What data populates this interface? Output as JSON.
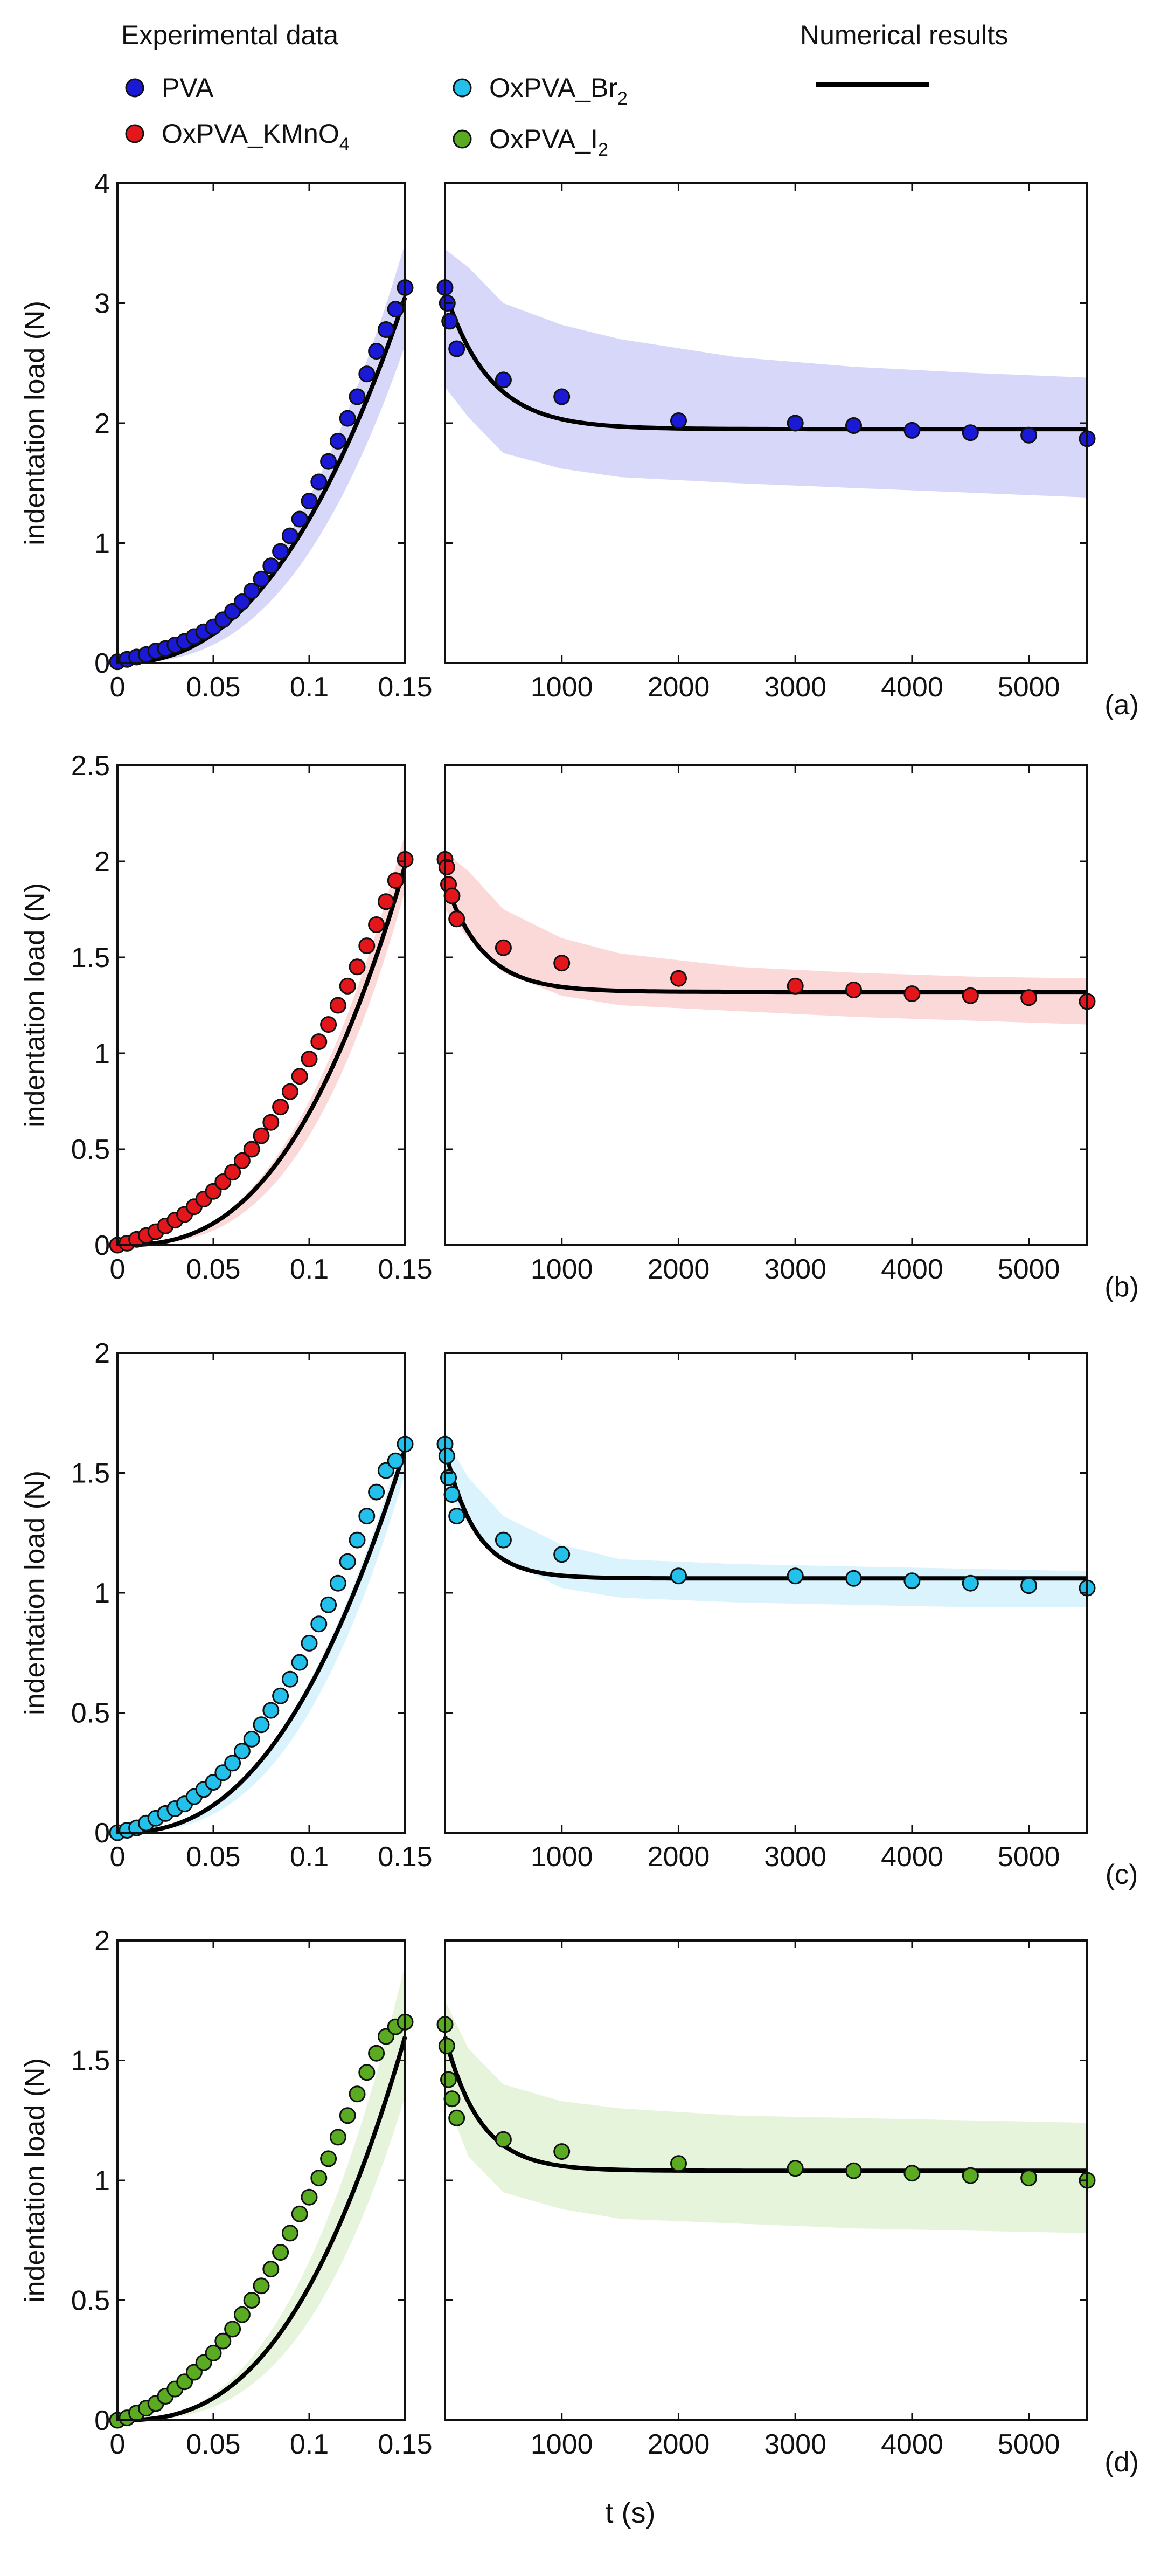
{
  "legend": {
    "experimental_title": "Experimental data",
    "numerical_title": "Numerical results",
    "entries": [
      {
        "name": "PVA",
        "color": "#1a1ad6"
      },
      {
        "name": "OxPVA_KMnO",
        "sub": "4",
        "color": "#e3171b"
      },
      {
        "name": "OxPVA_Br",
        "sub": "2",
        "color": "#22c0ea"
      },
      {
        "name": "OxPVA_I",
        "sub": "2",
        "color": "#5bab22"
      }
    ],
    "line_color": "#000000"
  },
  "shared_xlabel": "t (s)",
  "chart_data": [
    {
      "type": "scatter",
      "panel_label": "(a)",
      "series_name": "PVA",
      "ylabel": "indentation load (N)",
      "ylim": [
        0,
        4
      ],
      "yticks": [
        0,
        1,
        2,
        3,
        4
      ],
      "ytick_labels": [
        "0",
        "1",
        "2",
        "3",
        "4"
      ],
      "left_xlim": [
        0,
        0.15
      ],
      "left_xticks": [
        0,
        0.05,
        0.1,
        0.15
      ],
      "left_xtick_labels": [
        "0",
        "0.05",
        "0.1",
        "0.15"
      ],
      "right_xlim": [
        0,
        5500
      ],
      "right_xticks": [
        1000,
        2000,
        3000,
        4000,
        5000
      ],
      "right_xtick_labels": [
        "1000",
        "2000",
        "3000",
        "4000",
        "5000"
      ],
      "marker_color": "#1a1ad6",
      "band_color": "#c9c9f7",
      "loading_points": {
        "x": [
          0,
          0.005,
          0.01,
          0.015,
          0.02,
          0.025,
          0.03,
          0.035,
          0.04,
          0.045,
          0.05,
          0.055,
          0.06,
          0.065,
          0.07,
          0.075,
          0.08,
          0.085,
          0.09,
          0.095,
          0.1,
          0.105,
          0.11,
          0.115,
          0.12,
          0.125,
          0.13,
          0.135,
          0.14,
          0.145,
          0.15
        ],
        "y": [
          0.01,
          0.03,
          0.05,
          0.07,
          0.1,
          0.12,
          0.15,
          0.18,
          0.22,
          0.26,
          0.3,
          0.36,
          0.43,
          0.51,
          0.6,
          0.7,
          0.81,
          0.93,
          1.06,
          1.2,
          1.35,
          1.51,
          1.68,
          1.85,
          2.04,
          2.22,
          2.41,
          2.6,
          2.78,
          2.95,
          3.13
        ]
      },
      "loading_model": {
        "y_at_end": 3.05,
        "exponent": 2.3
      },
      "loading_band": {
        "upper_at_end": 3.5,
        "lower_at_end": 2.65
      },
      "relax_points": {
        "x": [
          0,
          20,
          40,
          100,
          500,
          1000,
          2000,
          3000,
          3500,
          4000,
          4500,
          5000,
          5500
        ],
        "y": [
          3.13,
          3.0,
          2.85,
          2.62,
          2.36,
          2.22,
          2.02,
          2.0,
          1.98,
          1.94,
          1.92,
          1.9,
          1.87
        ]
      },
      "relax_model": {
        "y0": 3.1,
        "y_inf": 1.95,
        "tau": 380
      },
      "relax_band": {
        "upper": [
          3.45,
          3.3,
          3.0,
          2.82,
          2.7,
          2.55,
          2.47,
          2.42,
          2.38
        ],
        "lower": [
          2.3,
          2.05,
          1.75,
          1.62,
          1.55,
          1.5,
          1.46,
          1.42,
          1.38
        ],
        "x": [
          0,
          200,
          500,
          1000,
          1500,
          2500,
          3500,
          4500,
          5500
        ]
      }
    },
    {
      "type": "scatter",
      "panel_label": "(b)",
      "series_name": "OxPVA_KMnO4",
      "ylabel": "indentation load (N)",
      "ylim": [
        0,
        2.5
      ],
      "yticks": [
        0,
        0.5,
        1,
        1.5,
        2,
        2.5
      ],
      "ytick_labels": [
        "0",
        "0.5",
        "1",
        "1.5",
        "2",
        "2.5"
      ],
      "left_xlim": [
        0,
        0.15
      ],
      "left_xticks": [
        0,
        0.05,
        0.1,
        0.15
      ],
      "left_xtick_labels": [
        "0",
        "0.05",
        "0.1",
        "0.15"
      ],
      "right_xlim": [
        0,
        5500
      ],
      "right_xticks": [
        1000,
        2000,
        3000,
        4000,
        5000
      ],
      "right_xtick_labels": [
        "1000",
        "2000",
        "3000",
        "4000",
        "5000"
      ],
      "marker_color": "#e3171b",
      "band_color": "#fbcccc",
      "loading_points": {
        "x": [
          0,
          0.005,
          0.01,
          0.015,
          0.02,
          0.025,
          0.03,
          0.035,
          0.04,
          0.045,
          0.05,
          0.055,
          0.06,
          0.065,
          0.07,
          0.075,
          0.08,
          0.085,
          0.09,
          0.095,
          0.1,
          0.105,
          0.11,
          0.115,
          0.12,
          0.125,
          0.13,
          0.135,
          0.14,
          0.145,
          0.15
        ],
        "y": [
          0,
          0.01,
          0.03,
          0.05,
          0.07,
          0.1,
          0.13,
          0.16,
          0.2,
          0.24,
          0.28,
          0.33,
          0.38,
          0.44,
          0.5,
          0.57,
          0.64,
          0.72,
          0.8,
          0.88,
          0.97,
          1.06,
          1.15,
          1.25,
          1.35,
          1.45,
          1.56,
          1.67,
          1.79,
          1.9,
          2.01
        ]
      },
      "loading_model": {
        "y_at_end": 1.98,
        "exponent": 2.6
      },
      "loading_band": {
        "upper_at_end": 2.15,
        "lower_at_end": 1.85
      },
      "relax_points": {
        "x": [
          0,
          15,
          30,
          60,
          100,
          500,
          1000,
          2000,
          3000,
          3500,
          4000,
          4500,
          5000,
          5500
        ],
        "y": [
          2.01,
          1.97,
          1.88,
          1.82,
          1.7,
          1.55,
          1.47,
          1.39,
          1.35,
          1.33,
          1.31,
          1.3,
          1.29,
          1.27
        ]
      },
      "relax_model": {
        "y0": 1.9,
        "y_inf": 1.32,
        "tau": 320
      },
      "relax_band": {
        "upper": [
          2.05,
          1.95,
          1.75,
          1.6,
          1.52,
          1.45,
          1.42,
          1.4,
          1.39
        ],
        "lower": [
          1.75,
          1.6,
          1.42,
          1.3,
          1.25,
          1.22,
          1.19,
          1.17,
          1.15
        ],
        "x": [
          0,
          200,
          500,
          1000,
          1500,
          2500,
          3500,
          4500,
          5500
        ]
      }
    },
    {
      "type": "scatter",
      "panel_label": "(c)",
      "series_name": "OxPVA_Br2",
      "ylabel": "indentation load (N)",
      "ylim": [
        0,
        2
      ],
      "yticks": [
        0,
        0.5,
        1,
        1.5,
        2
      ],
      "ytick_labels": [
        "0",
        "0.5",
        "1",
        "1.5",
        "2"
      ],
      "left_xlim": [
        0,
        0.15
      ],
      "left_xticks": [
        0,
        0.05,
        0.1,
        0.15
      ],
      "left_xtick_labels": [
        "0",
        "0.05",
        "0.1",
        "0.15"
      ],
      "right_xlim": [
        0,
        5500
      ],
      "right_xticks": [
        1000,
        2000,
        3000,
        4000,
        5000
      ],
      "right_xtick_labels": [
        "1000",
        "2000",
        "3000",
        "4000",
        "5000"
      ],
      "marker_color": "#22c0ea",
      "band_color": "#cdeffb",
      "loading_points": {
        "x": [
          0,
          0.005,
          0.01,
          0.015,
          0.02,
          0.025,
          0.03,
          0.035,
          0.04,
          0.045,
          0.05,
          0.055,
          0.06,
          0.065,
          0.07,
          0.075,
          0.08,
          0.085,
          0.09,
          0.095,
          0.1,
          0.105,
          0.11,
          0.115,
          0.12,
          0.125,
          0.13,
          0.135,
          0.14,
          0.145,
          0.15
        ],
        "y": [
          0,
          0.01,
          0.02,
          0.04,
          0.06,
          0.08,
          0.1,
          0.12,
          0.15,
          0.18,
          0.21,
          0.25,
          0.29,
          0.34,
          0.39,
          0.45,
          0.51,
          0.57,
          0.64,
          0.71,
          0.79,
          0.87,
          0.95,
          1.04,
          1.13,
          1.22,
          1.32,
          1.42,
          1.51,
          1.55,
          1.62
        ]
      },
      "loading_model": {
        "y_at_end": 1.6,
        "exponent": 2.4
      },
      "loading_band": {
        "upper_at_end": 1.66,
        "lower_at_end": 1.5
      },
      "relax_points": {
        "x": [
          0,
          15,
          30,
          60,
          100,
          500,
          1000,
          2000,
          3000,
          3500,
          4000,
          4500,
          5000,
          5500
        ],
        "y": [
          1.62,
          1.57,
          1.48,
          1.41,
          1.32,
          1.22,
          1.16,
          1.07,
          1.07,
          1.06,
          1.05,
          1.04,
          1.03,
          1.02
        ]
      },
      "relax_model": {
        "y0": 1.6,
        "y_inf": 1.06,
        "tau": 260
      },
      "relax_band": {
        "upper": [
          1.65,
          1.48,
          1.32,
          1.2,
          1.14,
          1.12,
          1.11,
          1.1,
          1.09
        ],
        "lower": [
          1.45,
          1.28,
          1.14,
          1.02,
          0.98,
          0.96,
          0.95,
          0.94,
          0.94
        ],
        "x": [
          0,
          200,
          500,
          1000,
          1500,
          2500,
          3500,
          4500,
          5500
        ]
      }
    },
    {
      "type": "scatter",
      "panel_label": "(d)",
      "series_name": "OxPVA_I2",
      "ylabel": "indentation load (N)",
      "ylim": [
        0,
        2
      ],
      "yticks": [
        0,
        0.5,
        1,
        1.5,
        2
      ],
      "ytick_labels": [
        "0",
        "0.5",
        "1",
        "1.5",
        "2"
      ],
      "left_xlim": [
        0,
        0.15
      ],
      "left_xticks": [
        0,
        0.05,
        0.1,
        0.15
      ],
      "left_xtick_labels": [
        "0",
        "0.05",
        "0.1",
        "0.15"
      ],
      "right_xlim": [
        0,
        5500
      ],
      "right_xticks": [
        1000,
        2000,
        3000,
        4000,
        5000
      ],
      "right_xtick_labels": [
        "1000",
        "2000",
        "3000",
        "4000",
        "5000"
      ],
      "marker_color": "#5bab22",
      "band_color": "#dff0d0",
      "loading_points": {
        "x": [
          0,
          0.005,
          0.01,
          0.015,
          0.02,
          0.025,
          0.03,
          0.035,
          0.04,
          0.045,
          0.05,
          0.055,
          0.06,
          0.065,
          0.07,
          0.075,
          0.08,
          0.085,
          0.09,
          0.095,
          0.1,
          0.105,
          0.11,
          0.115,
          0.12,
          0.125,
          0.13,
          0.135,
          0.14,
          0.145,
          0.15
        ],
        "y": [
          0,
          0.01,
          0.03,
          0.05,
          0.07,
          0.1,
          0.13,
          0.16,
          0.2,
          0.24,
          0.28,
          0.33,
          0.38,
          0.44,
          0.5,
          0.56,
          0.63,
          0.7,
          0.78,
          0.86,
          0.93,
          1.01,
          1.09,
          1.18,
          1.27,
          1.36,
          1.45,
          1.53,
          1.6,
          1.64,
          1.66
        ]
      },
      "loading_model": {
        "y_at_end": 1.6,
        "exponent": 2.6
      },
      "loading_band": {
        "upper_at_end": 1.9,
        "lower_at_end": 1.35
      },
      "relax_points": {
        "x": [
          0,
          15,
          30,
          60,
          100,
          500,
          1000,
          2000,
          3000,
          3500,
          4000,
          4500,
          5000,
          5500
        ],
        "y": [
          1.65,
          1.56,
          1.42,
          1.34,
          1.26,
          1.17,
          1.12,
          1.07,
          1.05,
          1.04,
          1.03,
          1.02,
          1.01,
          1.0
        ]
      },
      "relax_model": {
        "y0": 1.6,
        "y_inf": 1.04,
        "tau": 300
      },
      "relax_band": {
        "upper": [
          1.75,
          1.55,
          1.4,
          1.33,
          1.3,
          1.27,
          1.26,
          1.25,
          1.24
        ],
        "lower": [
          1.35,
          1.1,
          0.95,
          0.88,
          0.84,
          0.82,
          0.8,
          0.79,
          0.78
        ],
        "x": [
          0,
          200,
          500,
          1000,
          1500,
          2500,
          3500,
          4500,
          5500
        ]
      }
    }
  ]
}
